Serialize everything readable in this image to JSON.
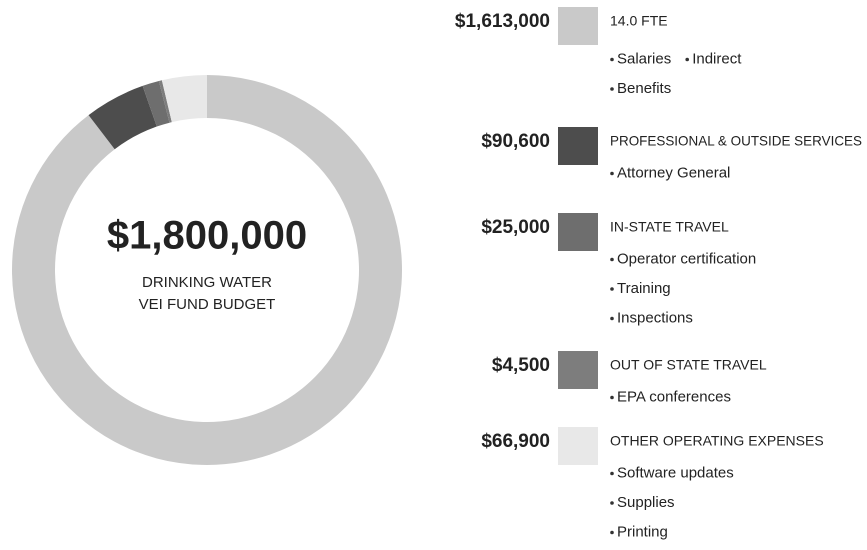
{
  "chart_data": {
    "type": "donut",
    "center_title": "$1,800,000",
    "center_subtitle": [
      "DRINKING WATER",
      "VEI FUND BUDGET"
    ],
    "categories": [
      "14.0 FTE",
      "PROFESSIONAL & OUTSIDE SERVICES",
      "IN-STATE TRAVEL",
      "OUT OF STATE TRAVEL",
      "OTHER OPERATING EXPENSES"
    ],
    "values": [
      1613000,
      90600,
      25000,
      4500,
      66900
    ],
    "value_labels": [
      "$1,613,000",
      "$90,600",
      "$25,000",
      "$4,500",
      "$66,900"
    ],
    "colors": [
      "#c9c9c9",
      "#4d4d4d",
      "#6e6e6e",
      "#7d7d7d",
      "#e8e8e8"
    ],
    "details": [
      [
        [
          "Salaries",
          "Indirect"
        ],
        [
          "Benefits"
        ]
      ],
      [
        [
          "Attorney General"
        ]
      ],
      [
        [
          "Operator certification"
        ],
        [
          "Training"
        ],
        [
          "Inspections"
        ]
      ],
      [
        [
          "EPA conferences"
        ]
      ],
      [
        [
          "Software updates"
        ],
        [
          "Supplies"
        ],
        [
          "Printing"
        ]
      ]
    ]
  }
}
